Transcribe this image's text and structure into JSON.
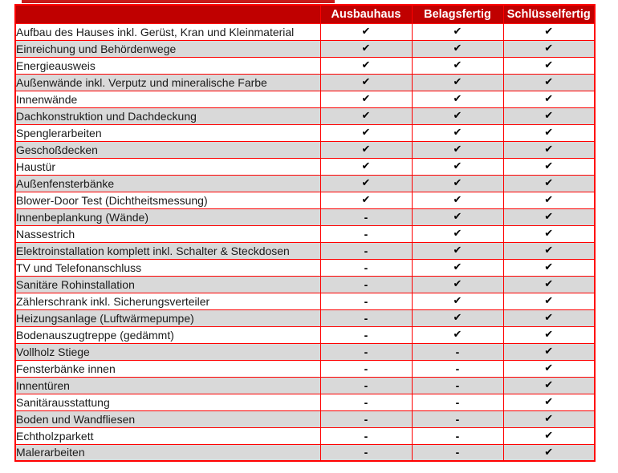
{
  "symbols": {
    "check": "✔",
    "dash": "-"
  },
  "colors": {
    "header_bg": "#c00000",
    "grid_border": "#ff0000",
    "alt_row_bg": "#d9d9d9",
    "header_text": "#ffffff",
    "body_text": "#1a1a1a",
    "mark_color": "#000000"
  },
  "table": {
    "columns": [
      "Ausbauhaus",
      "Belagsfertig",
      "Schlüsselfertig"
    ],
    "rows": [
      {
        "label": "Aufbau des Hauses inkl. Gerüst, Kran und Kleinmaterial",
        "values": [
          "check",
          "check",
          "check"
        ]
      },
      {
        "label": "Einreichung und Behördenwege",
        "values": [
          "check",
          "check",
          "check"
        ]
      },
      {
        "label": "Energieausweis",
        "values": [
          "check",
          "check",
          "check"
        ]
      },
      {
        "label": "Außenwände inkl. Verputz und mineralische Farbe",
        "values": [
          "check",
          "check",
          "check"
        ]
      },
      {
        "label": "Innenwände",
        "values": [
          "check",
          "check",
          "check"
        ]
      },
      {
        "label": "Dachkonstruktion und Dachdeckung",
        "values": [
          "check",
          "check",
          "check"
        ]
      },
      {
        "label": "Spenglerarbeiten",
        "values": [
          "check",
          "check",
          "check"
        ]
      },
      {
        "label": "Geschoßdecken",
        "values": [
          "check",
          "check",
          "check"
        ]
      },
      {
        "label": "Haustür",
        "values": [
          "check",
          "check",
          "check"
        ]
      },
      {
        "label": "Außenfensterbänke",
        "values": [
          "check",
          "check",
          "check"
        ]
      },
      {
        "label": "Blower-Door Test (Dichtheitsmessung)",
        "values": [
          "check",
          "check",
          "check"
        ]
      },
      {
        "label": "Innenbeplankung (Wände)",
        "values": [
          "dash",
          "check",
          "check"
        ]
      },
      {
        "label": "Nassestrich",
        "values": [
          "dash",
          "check",
          "check"
        ]
      },
      {
        "label": "Elektroinstallation komplett inkl. Schalter & Steckdosen",
        "values": [
          "dash",
          "check",
          "check"
        ]
      },
      {
        "label": "TV und Telefonanschluss",
        "values": [
          "dash",
          "check",
          "check"
        ]
      },
      {
        "label": "Sanitäre Rohinstallation",
        "values": [
          "dash",
          "check",
          "check"
        ]
      },
      {
        "label": "Zählerschrank inkl. Sicherungsverteiler",
        "values": [
          "dash",
          "check",
          "check"
        ]
      },
      {
        "label": "Heizungsanlage (Luftwärmepumpe)",
        "values": [
          "dash",
          "check",
          "check"
        ]
      },
      {
        "label": "Bodenauszugtreppe (gedämmt)",
        "values": [
          "dash",
          "check",
          "check"
        ]
      },
      {
        "label": "Vollholz Stiege",
        "values": [
          "dash",
          "dash",
          "check"
        ]
      },
      {
        "label": "Fensterbänke innen",
        "values": [
          "dash",
          "dash",
          "check"
        ]
      },
      {
        "label": "Innentüren",
        "values": [
          "dash",
          "dash",
          "check"
        ]
      },
      {
        "label": "Sanitärausstattung",
        "values": [
          "dash",
          "dash",
          "check"
        ]
      },
      {
        "label": "Boden und Wandfliesen",
        "values": [
          "dash",
          "dash",
          "check"
        ]
      },
      {
        "label": "Echtholzparkett",
        "values": [
          "dash",
          "dash",
          "check"
        ]
      },
      {
        "label": "Malerarbeiten",
        "values": [
          "dash",
          "dash",
          "check"
        ]
      }
    ]
  }
}
